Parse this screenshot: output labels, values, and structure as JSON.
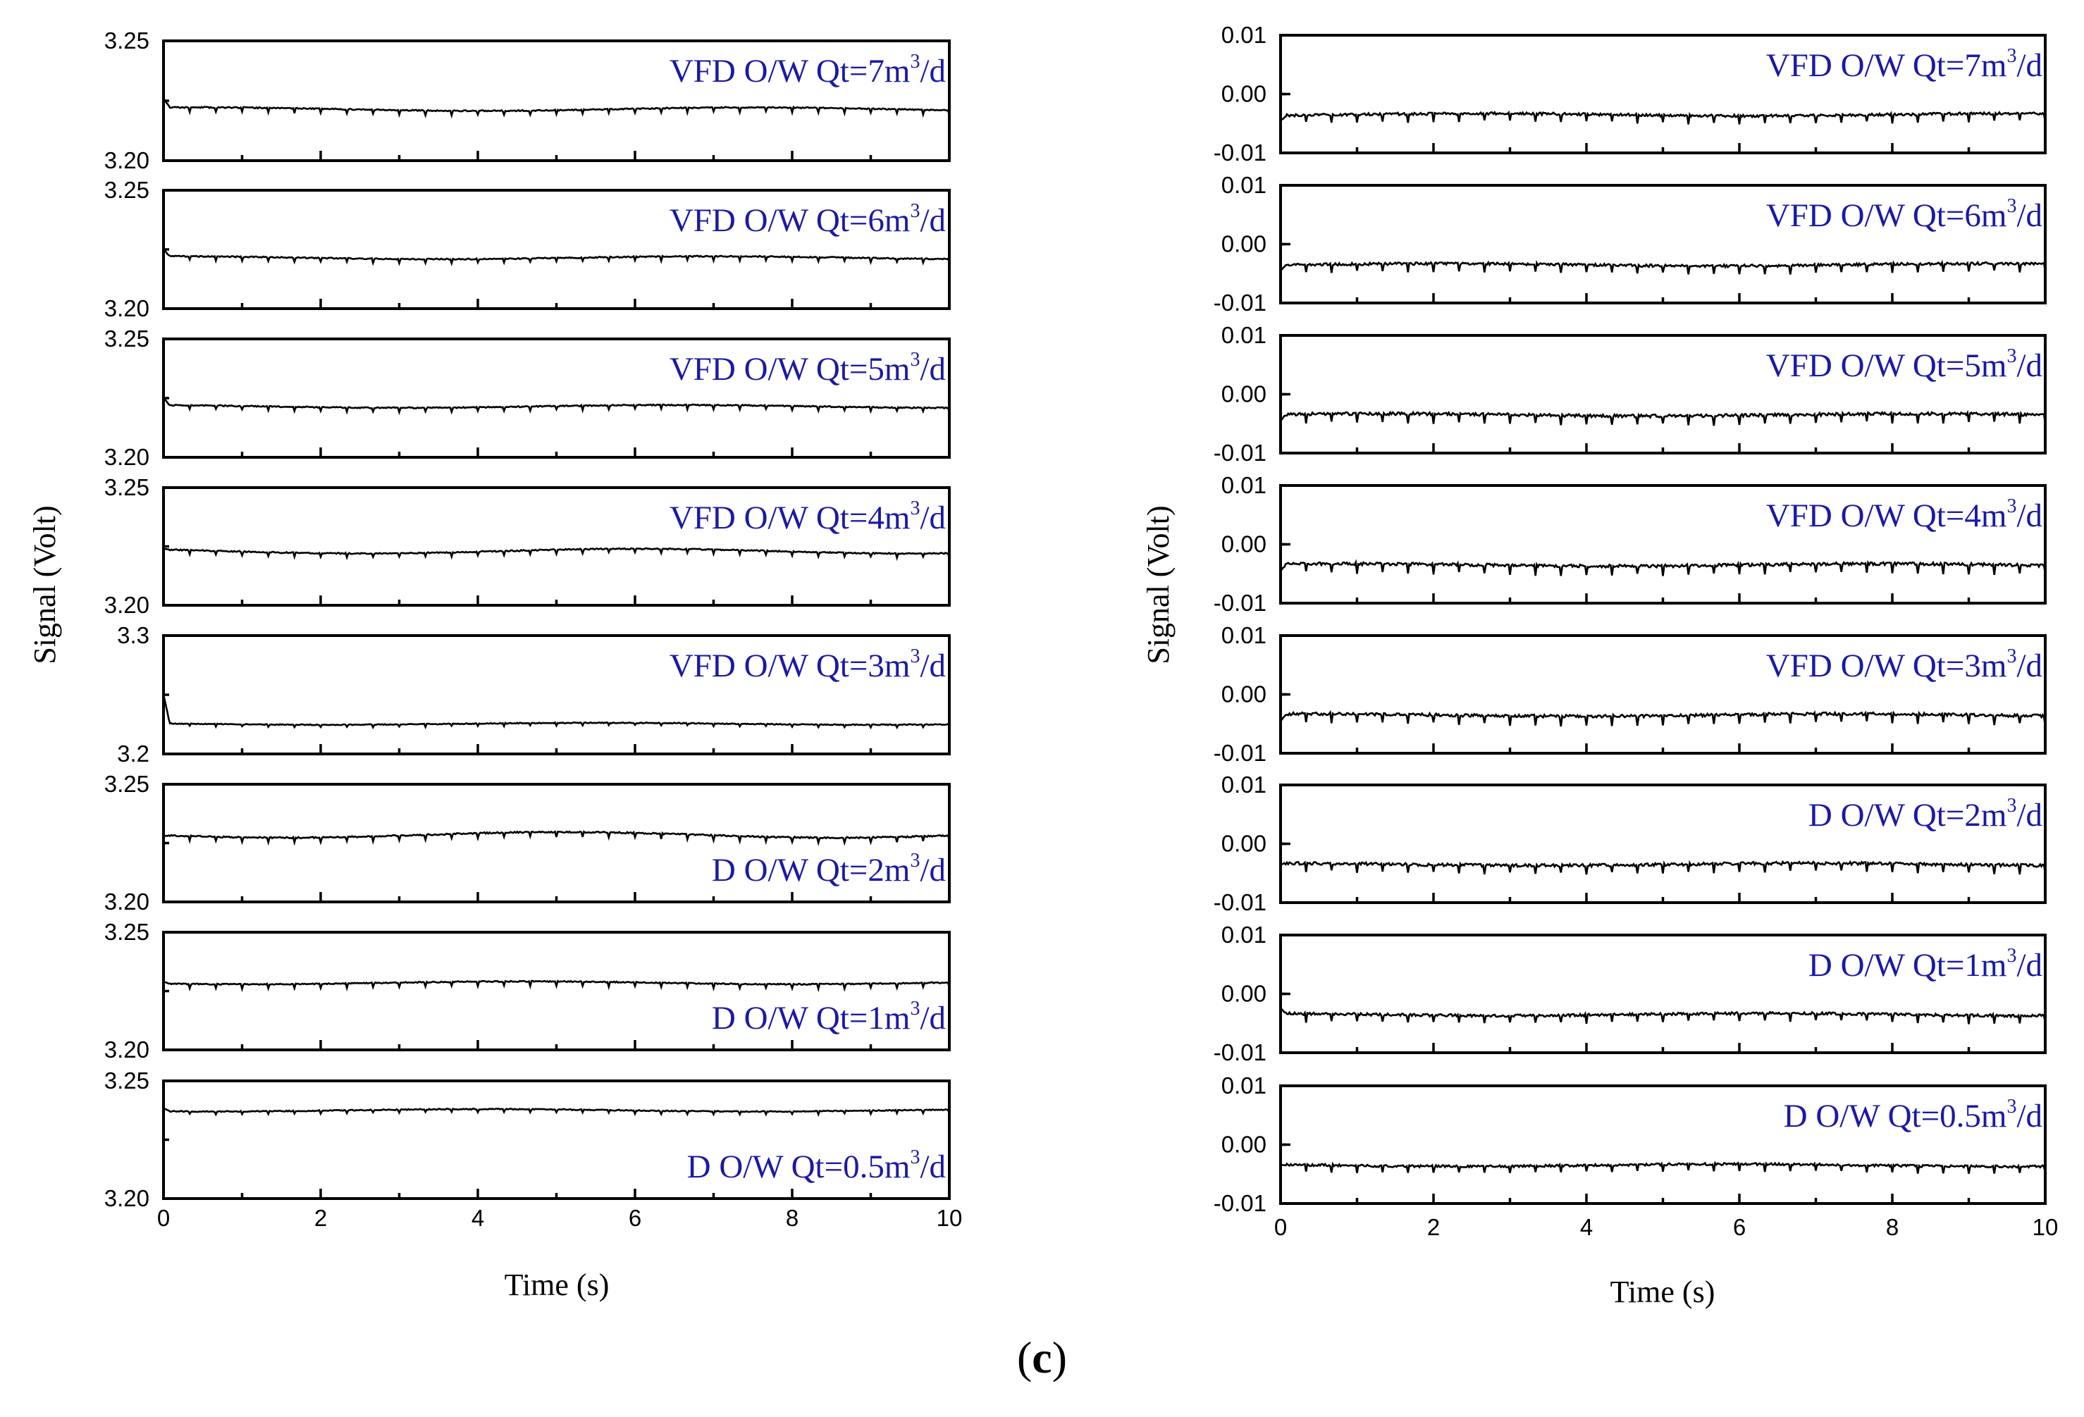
{
  "figure_caption": {
    "prefix": "(",
    "letter": "c",
    "suffix": ")"
  },
  "chart_data": [
    {
      "type": "line",
      "xlabel": "Time (s)",
      "ylabel": "Signal (Volt)",
      "xlim": [
        0,
        10
      ],
      "xticks": [
        "0",
        "2",
        "4",
        "6",
        "8",
        "10"
      ],
      "line_color": "#000000",
      "annotation_color": "#1a1aa6",
      "panels": [
        {
          "annotation": "VFD O/W Qt=7m3/d",
          "ylim": [
            3.2,
            3.25
          ],
          "yticks": [
            "3.20",
            "3.25"
          ],
          "annotation_pos": "top",
          "mean": 3.2215,
          "start": 3.226,
          "spikes": 0.0018,
          "noise": 0.00025,
          "wander": 0.0007,
          "seed": 11
        },
        {
          "annotation": "VFD O/W Qt=6m3/d",
          "ylim": [
            3.2,
            3.25
          ],
          "yticks": [
            "3.20",
            "3.25"
          ],
          "annotation_pos": "top",
          "mean": 3.2215,
          "start": 3.225,
          "spikes": 0.0016,
          "noise": 0.00025,
          "wander": 0.0006,
          "seed": 12
        },
        {
          "annotation": "VFD O/W Qt=5m3/d",
          "ylim": [
            3.2,
            3.25
          ],
          "yticks": [
            "3.20",
            "3.25"
          ],
          "annotation_pos": "top",
          "mean": 3.2215,
          "start": 3.225,
          "spikes": 0.0016,
          "noise": 0.00025,
          "wander": 0.0006,
          "seed": 13
        },
        {
          "annotation": "VFD O/W Qt=4m3/d",
          "ylim": [
            3.2,
            3.25
          ],
          "yticks": [
            "3.20",
            "3.25"
          ],
          "annotation_pos": "top",
          "mean": 3.223,
          "start": 3.224,
          "spikes": 0.0016,
          "noise": 0.00025,
          "wander": 0.001,
          "seed": 14
        },
        {
          "annotation": "VFD O/W Qt=3m3/d",
          "ylim": [
            3.2,
            3.3
          ],
          "yticks": [
            "3.2",
            "3.3"
          ],
          "annotation_pos": "top",
          "mean": 3.2255,
          "start": 3.25,
          "spikes": 0.002,
          "noise": 0.0004,
          "wander": 0.0008,
          "seed": 15
        },
        {
          "annotation": "D O/W Qt=2m3/d",
          "ylim": [
            3.2,
            3.25
          ],
          "yticks": [
            "3.20",
            "3.25"
          ],
          "annotation_pos": "bottom",
          "mean": 3.2285,
          "start": 3.228,
          "spikes": 0.002,
          "noise": 0.0003,
          "wander": 0.0012,
          "seed": 16
        },
        {
          "annotation": "D O/W Qt=1m3/d",
          "ylim": [
            3.2,
            3.25
          ],
          "yticks": [
            "3.20",
            "3.25"
          ],
          "annotation_pos": "bottom",
          "mean": 3.2285,
          "start": 3.229,
          "spikes": 0.0018,
          "noise": 0.00025,
          "wander": 0.0006,
          "seed": 17
        },
        {
          "annotation": "D O/W Qt=0.5m3/d",
          "ylim": [
            3.2,
            3.25
          ],
          "yticks": [
            "3.20",
            "3.25"
          ],
          "annotation_pos": "bottom",
          "mean": 3.2375,
          "start": 3.2385,
          "spikes": 0.0012,
          "noise": 0.00022,
          "wander": 0.0005,
          "seed": 18
        }
      ]
    },
    {
      "type": "line",
      "xlabel": "Time (s)",
      "ylabel": "Signal (Volt)",
      "xlim": [
        0,
        10
      ],
      "xticks": [
        "0",
        "2",
        "4",
        "6",
        "8",
        "10"
      ],
      "line_color": "#000000",
      "annotation_color": "#1a1aa6",
      "panels": [
        {
          "annotation": "VFD O/W Qt=7m3/d",
          "ylim": [
            -0.01,
            0.01
          ],
          "yticks": [
            "-0.01",
            "0.00",
            "0.01"
          ],
          "annotation_pos": "top",
          "mean": -0.0035,
          "start": -0.0045,
          "spikes": 0.0013,
          "noise": 0.00022,
          "wander": 0.0002,
          "seed": 21
        },
        {
          "annotation": "VFD O/W Qt=6m3/d",
          "ylim": [
            -0.01,
            0.01
          ],
          "yticks": [
            "-0.01",
            "0.00",
            "0.01"
          ],
          "annotation_pos": "top",
          "mean": -0.0035,
          "start": -0.0045,
          "spikes": 0.0013,
          "noise": 0.00022,
          "wander": 0.0002,
          "seed": 22
        },
        {
          "annotation": "VFD O/W Qt=5m3/d",
          "ylim": [
            -0.01,
            0.01
          ],
          "yticks": [
            "-0.01",
            "0.00",
            "0.01"
          ],
          "annotation_pos": "top",
          "mean": -0.0035,
          "start": -0.0045,
          "spikes": 0.0015,
          "noise": 0.00025,
          "wander": 0.0002,
          "seed": 23
        },
        {
          "annotation": "VFD O/W Qt=4m3/d",
          "ylim": [
            -0.01,
            0.01
          ],
          "yticks": [
            "-0.01",
            "0.00",
            "0.01"
          ],
          "annotation_pos": "top",
          "mean": -0.0035,
          "start": -0.0045,
          "spikes": 0.0015,
          "noise": 0.00025,
          "wander": 0.0002,
          "seed": 24
        },
        {
          "annotation": "VFD O/W Qt=3m3/d",
          "ylim": [
            -0.01,
            0.01
          ],
          "yticks": [
            "-0.01",
            "0.00",
            "0.01"
          ],
          "annotation_pos": "top",
          "mean": -0.0035,
          "start": -0.0045,
          "spikes": 0.0015,
          "noise": 0.00025,
          "wander": 0.0002,
          "seed": 25
        },
        {
          "annotation": "D O/W Qt=2m3/d",
          "ylim": [
            -0.01,
            0.01
          ],
          "yticks": [
            "-0.01",
            "0.00",
            "0.01"
          ],
          "annotation_pos": "top",
          "mean": -0.0035,
          "start": -0.0035,
          "spikes": 0.0014,
          "noise": 0.00025,
          "wander": 0.0002,
          "seed": 26
        },
        {
          "annotation": "D O/W Qt=1m3/d",
          "ylim": [
            -0.01,
            0.01
          ],
          "yticks": [
            "-0.01",
            "0.00",
            "0.01"
          ],
          "annotation_pos": "top",
          "mean": -0.0035,
          "start": -0.0025,
          "spikes": 0.0013,
          "noise": 0.00022,
          "wander": 0.0002,
          "seed": 27
        },
        {
          "annotation": "D O/W Qt=0.5m3/d",
          "ylim": [
            -0.01,
            0.01
          ],
          "yticks": [
            "-0.01",
            "0.00",
            "0.01"
          ],
          "annotation_pos": "top",
          "mean": -0.0035,
          "start": -0.0035,
          "spikes": 0.0012,
          "noise": 0.0002,
          "wander": 0.0002,
          "seed": 28
        }
      ]
    }
  ]
}
